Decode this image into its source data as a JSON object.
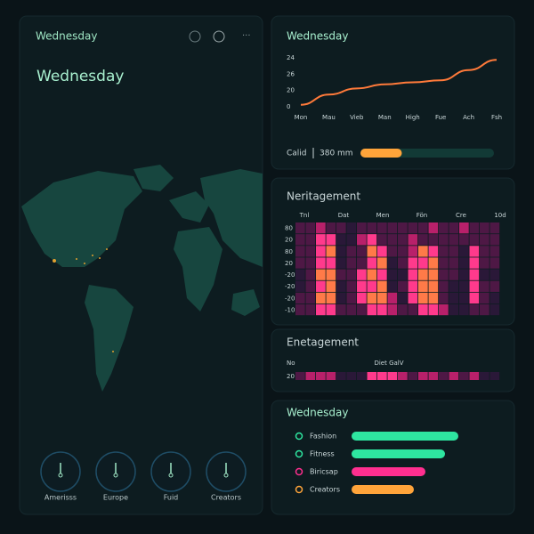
{
  "left_panel": {
    "header": "Wednesday",
    "heading": "Wednesday",
    "regions": [
      "Amerisss",
      "Europe",
      "Fuid",
      "Creators"
    ]
  },
  "line_panel": {
    "title": "Wednesday",
    "axis_labels": [
      "24",
      "26",
      "20",
      "0"
    ],
    "categories": [
      "Mon",
      "Mau",
      "Vieb",
      "Man",
      "High",
      "Fue",
      "Ach",
      "Fsh"
    ],
    "values": [
      1,
      6,
      9,
      11,
      12,
      13,
      18,
      23
    ],
    "ylim": [
      0,
      24
    ],
    "color": "#ff7a3a",
    "progress_label": "Calid",
    "progress_value": "380 mm",
    "progress": 31,
    "progress_lim": [
      0,
      100
    ]
  },
  "heatmap_panel": {
    "title": "Neritagement",
    "column_labels": [
      "Tnl",
      "Dat",
      "Men",
      "Fön",
      "Cre",
      "10d"
    ],
    "row_labels": [
      "80",
      "20",
      "80",
      "20",
      "-20",
      "-20",
      "-20",
      "-10"
    ],
    "cells": [
      [
        1,
        1,
        2,
        1,
        1,
        0,
        1,
        1,
        1,
        1,
        1,
        1,
        1,
        2,
        1,
        1,
        2,
        1,
        1,
        1
      ],
      [
        1,
        1,
        3,
        3,
        0,
        0,
        2,
        3,
        1,
        1,
        1,
        2,
        1,
        1,
        1,
        1,
        1,
        1,
        1,
        1
      ],
      [
        1,
        1,
        3,
        4,
        0,
        1,
        1,
        4,
        3,
        1,
        1,
        2,
        4,
        3,
        1,
        1,
        0,
        3,
        1,
        1
      ],
      [
        1,
        1,
        3,
        3,
        0,
        1,
        1,
        3,
        4,
        0,
        1,
        3,
        3,
        4,
        1,
        1,
        0,
        3,
        1,
        1
      ],
      [
        0,
        1,
        4,
        4,
        1,
        1,
        3,
        4,
        3,
        0,
        0,
        3,
        4,
        4,
        1,
        1,
        0,
        3,
        0,
        0
      ],
      [
        0,
        1,
        3,
        4,
        0,
        1,
        3,
        3,
        4,
        0,
        1,
        3,
        4,
        4,
        1,
        0,
        0,
        3,
        1,
        1
      ],
      [
        1,
        1,
        4,
        4,
        0,
        1,
        3,
        4,
        4,
        2,
        0,
        3,
        4,
        4,
        1,
        0,
        0,
        3,
        1,
        0
      ],
      [
        1,
        1,
        3,
        3,
        1,
        1,
        1,
        3,
        3,
        2,
        1,
        1,
        3,
        3,
        2,
        0,
        0,
        1,
        1,
        0
      ]
    ]
  },
  "strip_panel": {
    "title": "Enetagement",
    "left_label": "No",
    "center_label": "Diet GalV",
    "row_label": "20",
    "cells": [
      1,
      2,
      2,
      2,
      0,
      0,
      0,
      3,
      3,
      3,
      2,
      1,
      2,
      2,
      1,
      2,
      1,
      2,
      0,
      0
    ]
  },
  "category_panel": {
    "title": "Wednesday",
    "items": [
      {
        "name": "Fashion",
        "value": 120,
        "color": "#2ee6a0"
      },
      {
        "name": "Fitness",
        "value": 105,
        "color": "#2ee6a0"
      },
      {
        "name": "Biricsap",
        "value": 83,
        "color": "#ff2f8f"
      },
      {
        "name": "Creators",
        "value": 70,
        "color": "#ffa43a"
      }
    ],
    "xlim": [
      0,
      160
    ]
  }
}
